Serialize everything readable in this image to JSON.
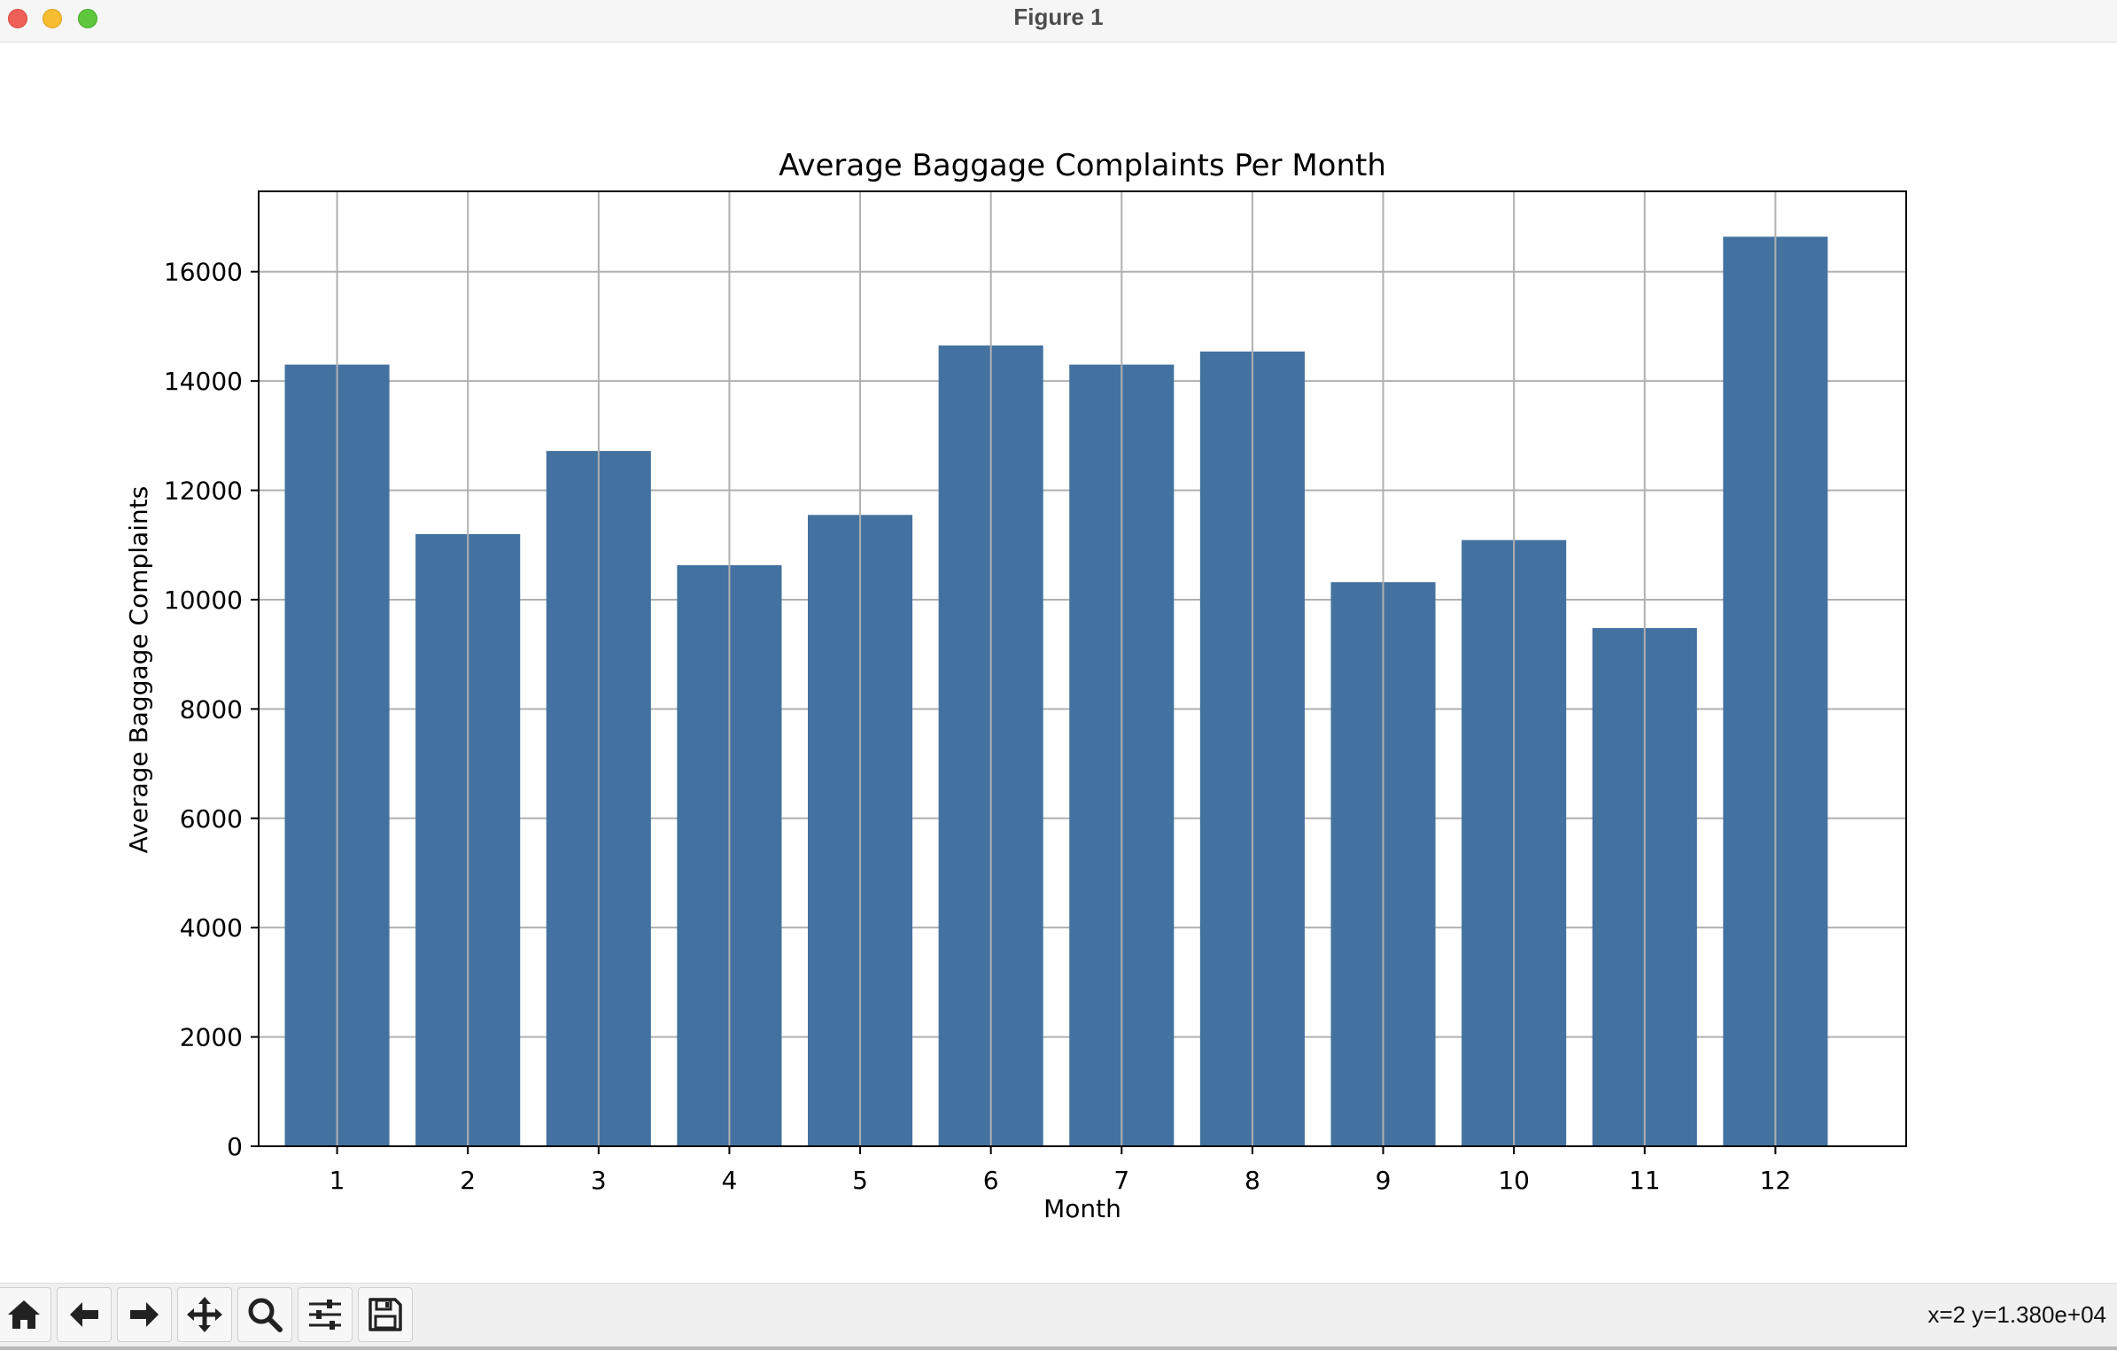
{
  "window": {
    "title": "Figure 1"
  },
  "toolbar": {
    "buttons": [
      {
        "name": "home-icon"
      },
      {
        "name": "back-arrow-icon"
      },
      {
        "name": "forward-arrow-icon"
      },
      {
        "name": "pan-icon"
      },
      {
        "name": "zoom-icon"
      },
      {
        "name": "configure-subplots-icon"
      },
      {
        "name": "save-icon"
      }
    ],
    "coords": "x=2 y=1.380e+04"
  },
  "chart_data": {
    "type": "bar",
    "title": "Average Baggage Complaints Per Month",
    "xlabel": "Month",
    "ylabel": "Average Baggage Complaints",
    "categories": [
      "1",
      "2",
      "3",
      "4",
      "5",
      "6",
      "7",
      "8",
      "9",
      "10",
      "11",
      "12"
    ],
    "values": [
      14300,
      11200,
      12720,
      10630,
      11550,
      14650,
      14300,
      14540,
      10320,
      11090,
      9480,
      16640
    ],
    "yticks": [
      0,
      2000,
      4000,
      6000,
      8000,
      10000,
      12000,
      14000,
      16000
    ],
    "ylim": [
      0,
      17470
    ],
    "grid": true,
    "bar_color": "#4372a0"
  }
}
